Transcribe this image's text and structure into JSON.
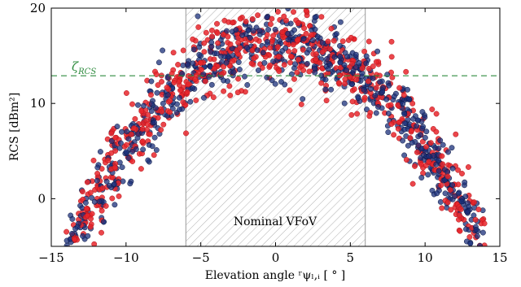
{
  "chart_data": {
    "type": "scatter",
    "title": "",
    "xlabel": "Elevation angle ʳψₗ,ᵢ [ ° ]",
    "ylabel": "RCS [dBm²]",
    "xlim": [
      -15,
      15
    ],
    "ylim": [
      -5,
      20
    ],
    "xticks": [
      -15,
      -10,
      -5,
      0,
      5,
      10,
      15
    ],
    "yticks": [
      0,
      10,
      20
    ],
    "x_tick_labels": [
      "−15",
      "−10",
      "−5",
      "0",
      "5",
      "10",
      "15"
    ],
    "y_tick_labels": [
      "0",
      "10",
      "20"
    ],
    "grid": false,
    "legend": "none",
    "shaded_region": {
      "x": [
        -6,
        6
      ],
      "label": "Nominal VFoV",
      "pattern": "diagonal hatch",
      "color": "#9a9a9a"
    },
    "reference_line": {
      "y": 12.9,
      "label": "ζRCS",
      "style": "dashed",
      "color": "#2e8b3e"
    },
    "series": [
      {
        "color": "#1a2f7a",
        "marker": "circle",
        "points": []
      },
      {
        "color": "#e8262b",
        "marker": "circle",
        "points": []
      }
    ],
    "generation": {
      "x_range": [
        -14,
        14
      ],
      "peak_db": 16.3,
      "curvature": 0.11,
      "noise_db": 2.2,
      "n_per_series": 700
    }
  }
}
